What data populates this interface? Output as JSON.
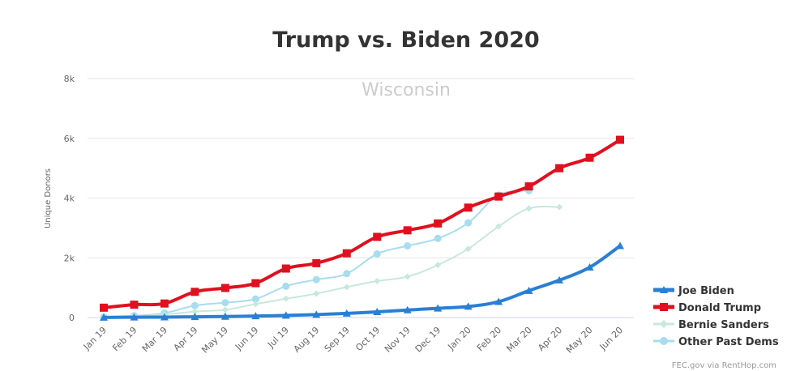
{
  "chart_data": {
    "type": "line",
    "title": "Trump vs. Biden 2020",
    "subtitle": "Wisconsin",
    "ylabel": "Unique Donors",
    "ylim": [
      0,
      8000
    ],
    "yticks": [
      {
        "value": 0,
        "label": "0"
      },
      {
        "value": 2000,
        "label": "2k"
      },
      {
        "value": 4000,
        "label": "4k"
      },
      {
        "value": 6000,
        "label": "6k"
      },
      {
        "value": 8000,
        "label": "8k"
      }
    ],
    "categories": [
      "Jan 19",
      "Feb 19",
      "Mar 19",
      "Apr 19",
      "May 19",
      "Jun 19",
      "Jul 19",
      "Aug 19",
      "Sep 19",
      "Oct 19",
      "Nov 19",
      "Dec 19",
      "Jan 20",
      "Feb 20",
      "Mar 20",
      "Apr 20",
      "May 20",
      "Jun 20"
    ],
    "grid": true,
    "legend_position": "right",
    "series": [
      {
        "name": "Other Past Dems",
        "color": "#a8dcef",
        "marker": "circle",
        "values": [
          20,
          60,
          150,
          400,
          500,
          620,
          1050,
          1270,
          1470,
          2130,
          2400,
          2650,
          3170,
          4100,
          4250,
          null,
          null,
          null
        ]
      },
      {
        "name": "Bernie Sanders",
        "color": "#c8e8dc",
        "marker": "diamond",
        "values": [
          15,
          50,
          100,
          200,
          260,
          450,
          630,
          800,
          1020,
          1220,
          1370,
          1760,
          2300,
          3050,
          3650,
          3700,
          null,
          null
        ]
      },
      {
        "name": "Joe Biden",
        "color": "#2a7fd4",
        "marker": "triangle",
        "values": [
          5,
          10,
          15,
          25,
          35,
          50,
          70,
          100,
          140,
          190,
          250,
          310,
          370,
          530,
          900,
          1250,
          1680,
          2400
        ]
      },
      {
        "name": "Donald Trump",
        "color": "#e0101f",
        "marker": "square",
        "values": [
          330,
          430,
          470,
          860,
          990,
          1150,
          1640,
          1820,
          2150,
          2700,
          2920,
          3150,
          3680,
          4050,
          4390,
          5000,
          5350,
          5950
        ]
      }
    ],
    "legend_order": [
      "Joe Biden",
      "Donald Trump",
      "Bernie Sanders",
      "Other Past Dems"
    ],
    "credit": "FEC.gov via RentHop.com"
  }
}
